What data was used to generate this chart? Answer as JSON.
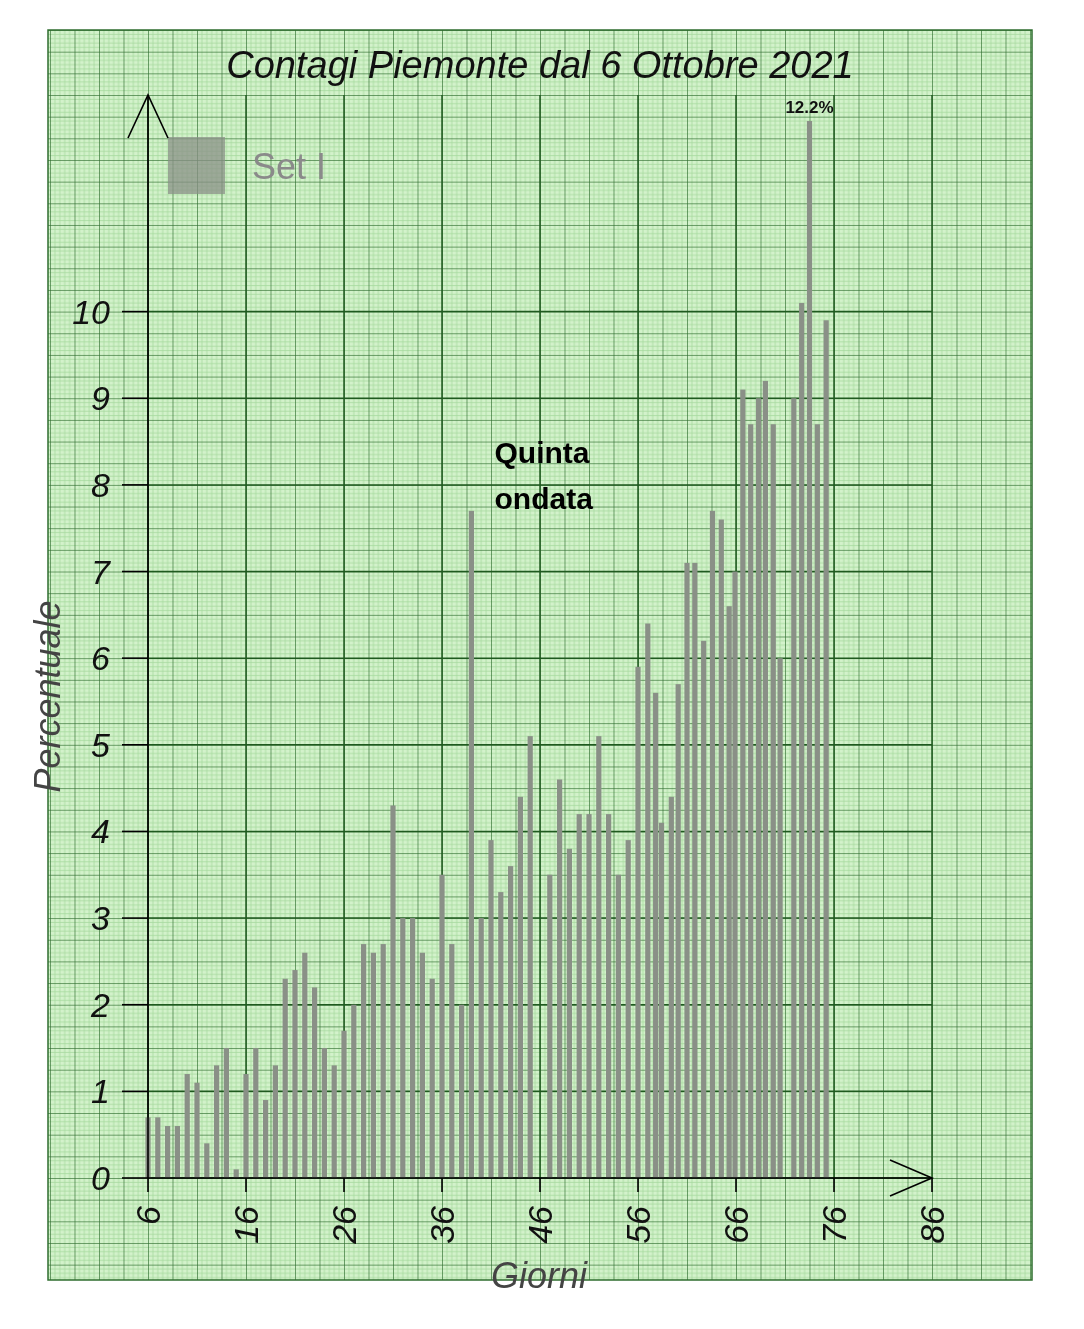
{
  "chart_data": {
    "type": "bar",
    "title": "Contagi Piemonte dal 6 Ottobre 2021",
    "xlabel": "Giorni",
    "ylabel": "Percentuale",
    "annotations": [
      "Quinta ondata"
    ],
    "x": [
      6,
      7,
      8,
      9,
      10,
      11,
      12,
      13,
      14,
      15,
      16,
      17,
      18,
      19,
      20,
      21,
      22,
      23,
      24,
      25,
      26,
      27,
      28,
      29,
      30,
      31,
      32,
      33,
      34,
      35,
      36,
      37,
      38,
      39,
      40,
      41,
      42,
      43,
      44,
      45,
      47,
      48,
      49,
      50,
      51,
      52,
      53,
      54,
      55,
      56,
      57,
      57.8,
      58.4,
      59.4,
      60.1,
      61,
      61.8,
      62.7,
      63.6,
      64.5,
      65.3,
      65.9,
      66.7,
      67.5,
      68.3,
      69,
      69.8,
      70.5,
      71.9,
      72.7,
      73.5,
      74.3,
      75.2
    ],
    "series": [
      {
        "name": "Set I",
        "color": "#8a9087",
        "values": [
          0.7,
          0.7,
          0.6,
          0.6,
          1.2,
          1.1,
          0.4,
          1.3,
          1.5,
          0.1,
          1.2,
          1.5,
          0.9,
          1.3,
          2.3,
          2.4,
          2.6,
          2.2,
          1.5,
          1.3,
          1.7,
          2.0,
          2.7,
          2.6,
          2.7,
          4.3,
          3.0,
          3.0,
          2.6,
          2.3,
          3.5,
          2.7,
          2.0,
          7.7,
          3.0,
          3.9,
          3.3,
          3.6,
          4.4,
          5.1,
          3.5,
          4.6,
          3.8,
          4.2,
          4.2,
          5.1,
          4.2,
          3.5,
          3.9,
          5.9,
          6.4,
          5.6,
          4.1,
          4.4,
          5.7,
          7.1,
          7.1,
          6.2,
          7.7,
          7.6,
          6.6,
          7.0,
          9.1,
          8.7,
          9.0,
          9.2,
          8.7,
          6.0,
          9.0,
          10.1,
          12.2,
          8.7,
          9.9
        ],
        "value_labels": [
          null,
          null,
          null,
          null,
          null,
          null,
          null,
          null,
          null,
          null,
          null,
          null,
          null,
          null,
          null,
          null,
          null,
          null,
          null,
          null,
          null,
          null,
          null,
          null,
          null,
          null,
          null,
          null,
          null,
          null,
          null,
          null,
          null,
          null,
          null,
          null,
          null,
          null,
          null,
          null,
          null,
          null,
          null,
          null,
          null,
          null,
          null,
          null,
          null,
          null,
          null,
          null,
          null,
          null,
          null,
          null,
          null,
          null,
          null,
          null,
          null,
          null,
          null,
          null,
          null,
          null,
          null,
          null,
          null,
          null,
          "12.2%",
          null,
          null
        ]
      }
    ],
    "xlim": [
      6,
      86
    ],
    "xticks": [
      6,
      16,
      26,
      36,
      46,
      56,
      66,
      76,
      86
    ],
    "ylim": [
      0,
      12.5
    ],
    "yticks": [
      0,
      1,
      2,
      3,
      4,
      5,
      6,
      7,
      8,
      9,
      10
    ],
    "grid": true,
    "legend": "top left"
  }
}
